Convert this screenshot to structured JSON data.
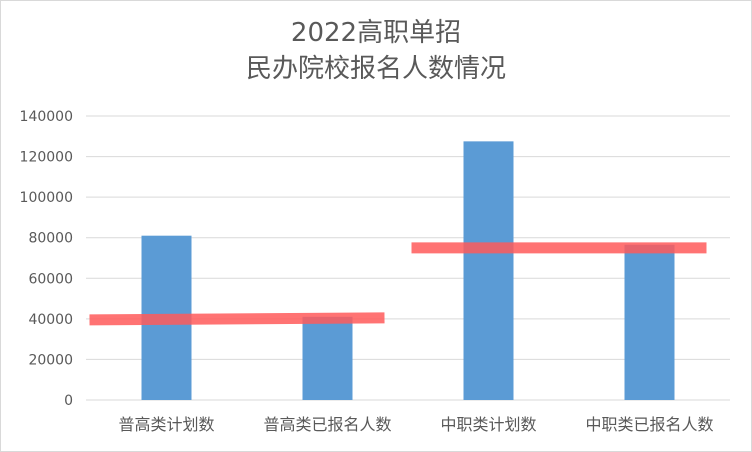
{
  "chart_data": {
    "type": "bar",
    "title_line1": "2022高职单招",
    "title_line2": "民办院校报名人数情况",
    "categories": [
      "普高类计划数",
      "普高类已报名人数",
      "中职类计划数",
      "中职类已报名人数"
    ],
    "values": [
      81000,
      41000,
      127500,
      76500
    ],
    "ylim": [
      0,
      140000
    ],
    "yticks": [
      0,
      20000,
      40000,
      60000,
      80000,
      100000,
      120000,
      140000
    ],
    "grid": true,
    "legend": "none",
    "bar_color": "#5b9bd5",
    "highlight_color": "#ff5a5a",
    "highlights": [
      {
        "from_category": 0,
        "to_category": 1,
        "start_value": 39500,
        "end_value": 40500
      },
      {
        "from_category": 2,
        "to_category": 3,
        "start_value": 75000,
        "end_value": 75000
      }
    ]
  }
}
